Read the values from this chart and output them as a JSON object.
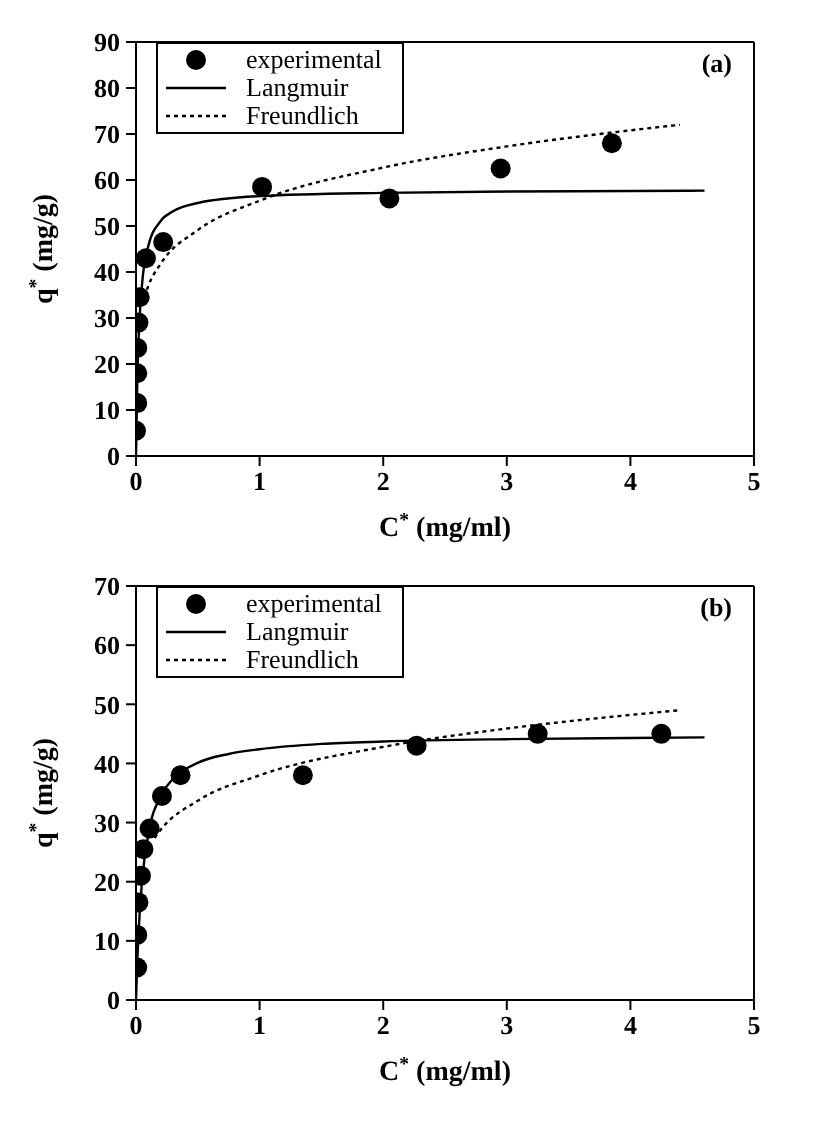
{
  "chart_data": [
    {
      "type": "scatter",
      "xlabel": "C$^{*}$ (mg/ml)",
      "ylabel": "q$^{*}$ (mg/g)",
      "annotations": [
        "(a)"
      ],
      "xlim": [
        0,
        5
      ],
      "ylim": [
        0,
        90
      ],
      "xticks": [
        0,
        1,
        2,
        3,
        4,
        5
      ],
      "yticks": [
        0,
        10,
        20,
        30,
        40,
        50,
        60,
        70,
        80,
        90
      ],
      "legend": "top left",
      "grid": false,
      "series": [
        {
          "name": "experimental",
          "marker": "circle",
          "color": "#000000",
          "x": [
            0.0,
            0.01,
            0.01,
            0.01,
            0.02,
            0.03,
            0.08,
            0.22,
            1.02,
            2.05,
            2.95,
            3.85
          ],
          "values": [
            5.5,
            11.5,
            18,
            23.5,
            29,
            34.5,
            43,
            46.5,
            58.5,
            56,
            62.5,
            68
          ]
        },
        {
          "name": "Langmuir",
          "type": "line",
          "line_style": "solid",
          "color": "#000000",
          "x": [
            0,
            0.01,
            0.02,
            0.05,
            0.1,
            0.2,
            0.3,
            0.5,
            1,
            2,
            3,
            4,
            4.6
          ],
          "values": [
            0,
            15.7,
            24.7,
            37.6,
            45.7,
            51.1,
            53.2,
            55,
            56.5,
            57.2,
            57.5,
            57.6,
            57.7
          ]
        },
        {
          "name": "Freundlich",
          "type": "line",
          "line_style": "dotted",
          "color": "#000000",
          "x": [
            0.05,
            0.1,
            0.2,
            0.5,
            1,
            2,
            3,
            4,
            4.4
          ],
          "values": [
            32.8,
            37,
            41.8,
            49.1,
            55.5,
            62.7,
            67.3,
            70.8,
            72
          ]
        }
      ]
    },
    {
      "type": "scatter",
      "xlabel": "C$^{*}$ (mg/ml)",
      "ylabel": "q$^{*}$ (mg/g)",
      "annotations": [
        "(b)"
      ],
      "xlim": [
        0,
        5
      ],
      "ylim": [
        0,
        70
      ],
      "xticks": [
        0,
        1,
        2,
        3,
        4,
        5
      ],
      "yticks": [
        0,
        10,
        20,
        30,
        40,
        50,
        60,
        70
      ],
      "legend": "top left",
      "grid": false,
      "series": [
        {
          "name": "experimental",
          "marker": "circle",
          "color": "#000000",
          "x": [
            0.01,
            0.01,
            0.02,
            0.04,
            0.06,
            0.11,
            0.21,
            0.36,
            1.35,
            2.27,
            3.25,
            4.25
          ],
          "values": [
            5.5,
            11,
            16.5,
            21,
            25.5,
            29,
            34.5,
            38,
            38,
            43,
            45,
            45
          ]
        },
        {
          "name": "Langmuir",
          "type": "line",
          "line_style": "solid",
          "color": "#000000",
          "x": [
            0,
            0.01,
            0.02,
            0.05,
            0.1,
            0.2,
            0.3,
            0.5,
            0.75,
            1,
            1.5,
            2,
            3,
            4,
            4.6
          ],
          "values": [
            0,
            6.4,
            11.2,
            20.3,
            28,
            34.5,
            37.4,
            40.1,
            41.6,
            42.4,
            43.3,
            43.7,
            44.1,
            44.3,
            44.4
          ]
        },
        {
          "name": "Freundlich",
          "type": "line",
          "line_style": "dotted",
          "color": "#000000",
          "x": [
            0.15,
            0.2,
            0.5,
            1,
            2,
            3,
            4,
            4.4
          ],
          "values": [
            27.4,
            28.8,
            33.7,
            38,
            42.8,
            45.9,
            48.2,
            49
          ]
        }
      ]
    }
  ]
}
